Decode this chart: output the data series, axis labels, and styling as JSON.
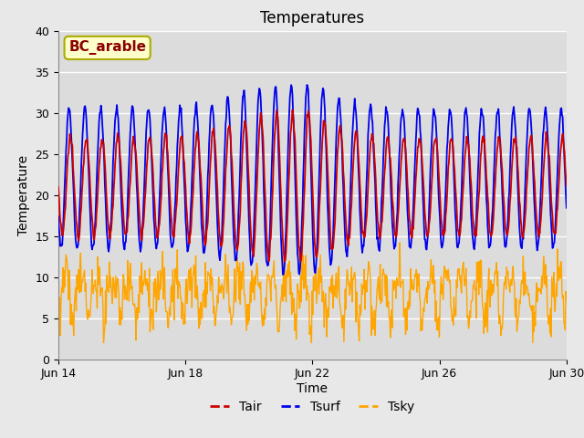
{
  "title": "Temperatures",
  "xlabel": "Time",
  "ylabel": "Temperature",
  "ylim": [
    0,
    40
  ],
  "annotation_text": "BC_arable",
  "annotation_color": "#8B0000",
  "annotation_bg": "#FFFFCC",
  "annotation_edge": "#AAAA00",
  "tair_color": "#CC0000",
  "tsurf_color": "#0000EE",
  "tsky_color": "#FFA500",
  "fig_bg_color": "#E8E8E8",
  "plot_bg_color": "#DCDCDC",
  "grid_color": "#FFFFFF",
  "legend_labels": [
    "Tair",
    "Tsurf",
    "Tsky"
  ],
  "xstart": 14,
  "xend": 30,
  "n_points": 800,
  "title_fontsize": 12,
  "axis_label_fontsize": 10,
  "tick_fontsize": 9,
  "legend_fontsize": 10,
  "figsize": [
    6.4,
    4.8
  ],
  "dpi": 100
}
